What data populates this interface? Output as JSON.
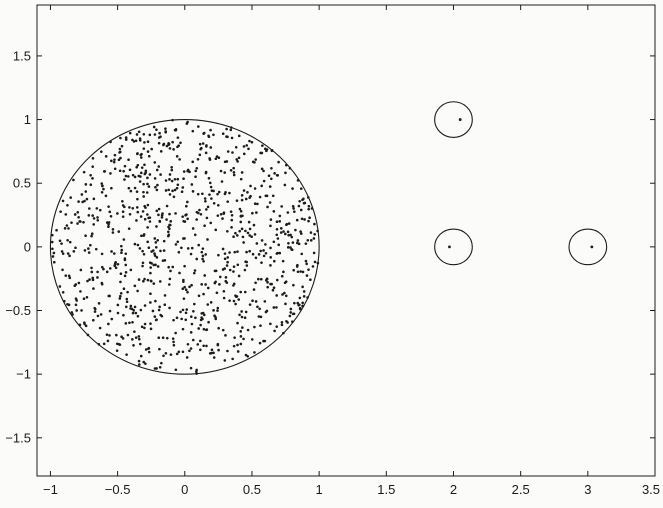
{
  "chart_data": {
    "type": "scatter",
    "title": "",
    "xlabel": "",
    "ylabel": "",
    "xlim": [
      -1.1,
      3.5
    ],
    "ylim": [
      -1.8,
      1.9
    ],
    "grid": false,
    "x_ticks": [
      -1,
      -0.5,
      0,
      0.5,
      1,
      1.5,
      2,
      2.5,
      3,
      3.5
    ],
    "y_ticks": [
      1.5,
      1,
      0.5,
      0,
      -0.5,
      -1,
      -1.5
    ],
    "x_tick_labels": [
      "−1",
      "−0.5",
      "0",
      "0.5",
      "1",
      "1.5",
      "2",
      "2.5",
      "3",
      "3.5"
    ],
    "y_tick_labels": [
      "1.5",
      "1",
      "0.5",
      "0",
      "−0.5",
      "−1",
      "−1.5"
    ],
    "circles": [
      {
        "cx": 0,
        "cy": 0,
        "r": 1.0
      },
      {
        "cx": 2.0,
        "cy": 1.0,
        "r": 0.14
      },
      {
        "cx": 2.0,
        "cy": 0.0,
        "r": 0.14
      },
      {
        "cx": 3.0,
        "cy": 0.0,
        "r": 0.14
      }
    ],
    "isolated_points": [
      {
        "x": 2.05,
        "y": 1.0
      },
      {
        "x": 1.97,
        "y": 0.0
      },
      {
        "x": 3.03,
        "y": 0.0
      }
    ],
    "cluster": {
      "shape": "disk",
      "cx": 0,
      "cy": 0,
      "r": 1.0,
      "count": 1000,
      "distribution": "uniform"
    },
    "marker_color": "#1c1c1c",
    "line_color": "#1c1c1c"
  }
}
